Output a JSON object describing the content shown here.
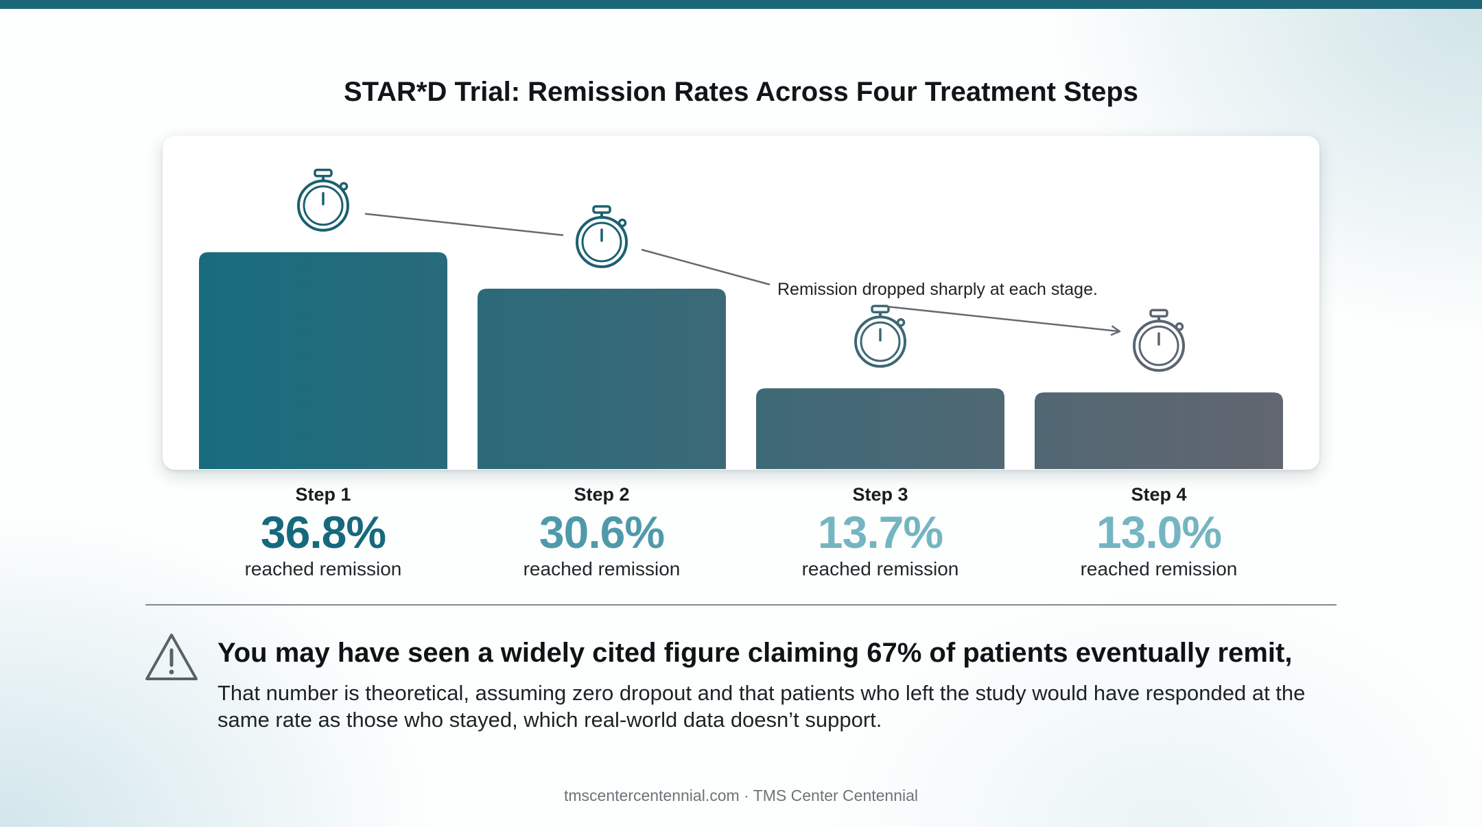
{
  "colors": {
    "accent": "#1b6577",
    "bar_start": "#186c7e",
    "bar_end": "#626670",
    "pct_dark": "#16697d",
    "pct_mid": "#4f9aaa",
    "pct_light": "#74b5c2",
    "icon_teal": "#1b6070",
    "icon_gray": "#5a6570"
  },
  "chart_data": {
    "type": "bar",
    "title": "STAR*D Trial: Remission Rates Across Four Treatment Steps",
    "categories": [
      "Step 1",
      "Step 2",
      "Step 3",
      "Step 4"
    ],
    "series": [
      {
        "values": [
          36.8,
          30.6,
          13.7,
          13.0
        ]
      }
    ],
    "value_labels": [
      "36.8%",
      "30.6%",
      "13.7%",
      "13.0%"
    ],
    "value_caption": "reached remission",
    "annotation": "Remission dropped sharply at each stage.",
    "icon": "stopwatch-icon",
    "ylim": [
      0,
      37
    ],
    "grid": false,
    "legend": "none"
  },
  "warning": {
    "icon": "warning-triangle-icon",
    "headline": "You may have seen a widely cited figure claiming 67% of patients eventually remit,",
    "body": "That number is theoretical, assuming zero dropout and that patients who left the study would have responded at the same rate as those who stayed, which real-world data doesn’t support."
  },
  "footer": {
    "text": "tmscentercentennial.com · TMS Center Centennial"
  }
}
